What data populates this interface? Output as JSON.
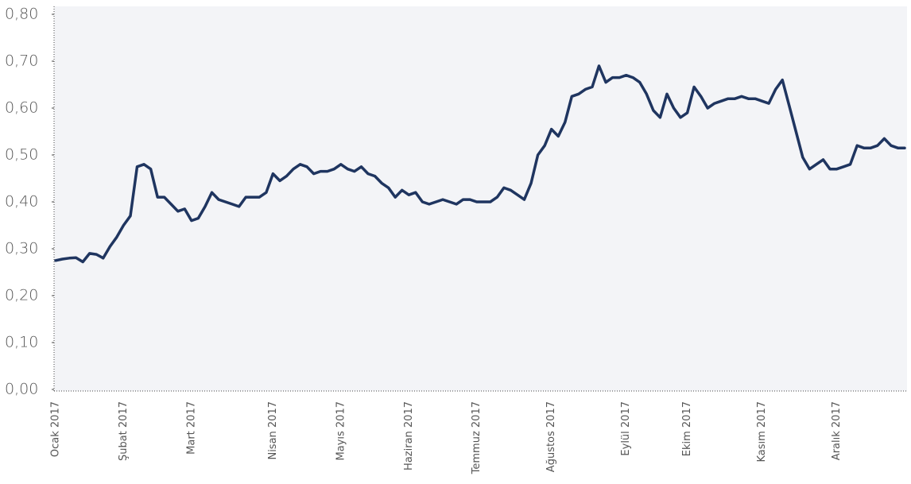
{
  "chart_data": {
    "type": "line",
    "categories": [
      "Ocak 2017",
      null,
      null,
      null,
      null,
      null,
      null,
      null,
      null,
      null,
      "Şubat 2017",
      null,
      null,
      null,
      null,
      null,
      null,
      null,
      null,
      null,
      "Mart 2017",
      null,
      null,
      null,
      null,
      null,
      null,
      null,
      null,
      null,
      null,
      null,
      "Nisan 2017",
      null,
      null,
      null,
      null,
      null,
      null,
      null,
      null,
      null,
      "Mayıs 2017",
      null,
      null,
      null,
      null,
      null,
      null,
      null,
      null,
      null,
      "Haziran 2017",
      null,
      null,
      null,
      null,
      null,
      null,
      null,
      null,
      null,
      "Temmuz 2017",
      null,
      null,
      null,
      null,
      null,
      null,
      null,
      null,
      null,
      null,
      "Ağustos 2017",
      null,
      null,
      null,
      null,
      null,
      null,
      null,
      null,
      null,
      null,
      "Eylül 2017",
      null,
      null,
      null,
      null,
      null,
      null,
      null,
      null,
      "Ekim 2017",
      null,
      null,
      null,
      null,
      null,
      null,
      null,
      null,
      null,
      null,
      "Kasım 2017",
      null,
      null,
      null,
      null,
      null,
      null,
      null,
      null,
      null,
      null,
      "Aralık 2017",
      null,
      null,
      null,
      null,
      null,
      null,
      null,
      null,
      null,
      null
    ],
    "series": [
      {
        "color": "#1f3560",
        "values": [
          0.275,
          0.278,
          0.28,
          0.281,
          0.272,
          0.29,
          0.288,
          0.28,
          0.305,
          0.325,
          0.35,
          0.37,
          0.475,
          0.48,
          0.47,
          0.41,
          0.41,
          0.395,
          0.38,
          0.385,
          0.36,
          0.365,
          0.39,
          0.42,
          0.405,
          0.4,
          0.395,
          0.39,
          0.41,
          0.41,
          0.41,
          0.42,
          0.46,
          0.445,
          0.455,
          0.47,
          0.48,
          0.475,
          0.46,
          0.465,
          0.465,
          0.47,
          0.48,
          0.47,
          0.465,
          0.475,
          0.46,
          0.455,
          0.44,
          0.43,
          0.41,
          0.425,
          0.415,
          0.42,
          0.4,
          0.395,
          0.4,
          0.405,
          0.4,
          0.395,
          0.405,
          0.405,
          0.4,
          0.4,
          0.4,
          0.41,
          0.43,
          0.425,
          0.415,
          0.405,
          0.44,
          0.5,
          0.52,
          0.555,
          0.54,
          0.57,
          0.625,
          0.63,
          0.64,
          0.645,
          0.69,
          0.655,
          0.665,
          0.665,
          0.67,
          0.665,
          0.655,
          0.63,
          0.595,
          0.58,
          0.63,
          0.6,
          0.58,
          0.59,
          0.645,
          0.625,
          0.6,
          0.61,
          0.615,
          0.62,
          0.62,
          0.625,
          0.62,
          0.62,
          0.615,
          0.61,
          0.64,
          0.66,
          0.605,
          0.55,
          0.495,
          0.47,
          0.48,
          0.49,
          0.47,
          0.47,
          0.475,
          0.48,
          0.52,
          0.515,
          0.515,
          0.52,
          0.535,
          0.52,
          0.515,
          0.515
        ]
      }
    ],
    "ylim": [
      0,
      0.8
    ],
    "yticks": [
      {
        "value": 0,
        "label": "0,00"
      },
      {
        "value": 0.1,
        "label": "0,10"
      },
      {
        "value": 0.2,
        "label": "0,20"
      },
      {
        "value": 0.3,
        "label": "0,30"
      },
      {
        "value": 0.4,
        "label": "0,40"
      },
      {
        "value": 0.5,
        "label": "0,50"
      },
      {
        "value": 0.6,
        "label": "0,60"
      },
      {
        "value": 0.7,
        "label": "0,70"
      },
      {
        "value": 0.8,
        "label": "0,80"
      }
    ],
    "grid": false
  }
}
